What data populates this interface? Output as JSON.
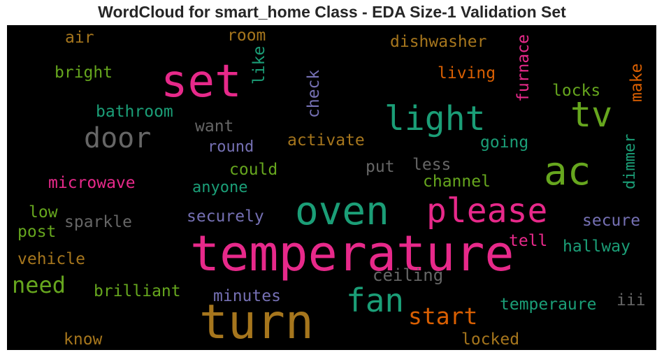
{
  "chart_data": {
    "type": "wordcloud",
    "title": "WordCloud for smart_home Class - EDA Size-1 Validation Set",
    "background": "#000000",
    "words": [
      {
        "text": "temperature",
        "color": "#e7298a"
      },
      {
        "text": "turn",
        "color": "#a6761d"
      },
      {
        "text": "oven",
        "color": "#1b9e77"
      },
      {
        "text": "please",
        "color": "#e7298a"
      },
      {
        "text": "set",
        "color": "#e7298a"
      },
      {
        "text": "light",
        "color": "#1b9e77"
      },
      {
        "text": "ac",
        "color": "#66a61e"
      },
      {
        "text": "tv",
        "color": "#66a61e"
      },
      {
        "text": "fan",
        "color": "#1b9e77"
      },
      {
        "text": "door",
        "color": "#666666"
      },
      {
        "text": "start",
        "color": "#d95f02"
      },
      {
        "text": "need",
        "color": "#66a61e"
      },
      {
        "text": "ceiling",
        "color": "#666666"
      },
      {
        "text": "bathroom",
        "color": "#1b9e77"
      },
      {
        "text": "furnace",
        "color": "#e7298a"
      },
      {
        "text": "check",
        "color": "#7570b3"
      },
      {
        "text": "dishwasher",
        "color": "#a6761d"
      },
      {
        "text": "living",
        "color": "#d95f02"
      },
      {
        "text": "activate",
        "color": "#a6761d"
      },
      {
        "text": "going",
        "color": "#1b9e77"
      },
      {
        "text": "make",
        "color": "#d95f02"
      },
      {
        "text": "locks",
        "color": "#66a61e"
      },
      {
        "text": "dimmer",
        "color": "#1b9e77"
      },
      {
        "text": "secure",
        "color": "#7570b3"
      },
      {
        "text": "hallway",
        "color": "#1b9e77"
      },
      {
        "text": "tell",
        "color": "#e7298a"
      },
      {
        "text": "temperaure",
        "color": "#1b9e77"
      },
      {
        "text": "iii",
        "color": "#666666"
      },
      {
        "text": "locked",
        "color": "#a6761d"
      },
      {
        "text": "minutes",
        "color": "#7570b3"
      },
      {
        "text": "brilliant",
        "color": "#66a61e"
      },
      {
        "text": "know",
        "color": "#a6761d"
      },
      {
        "text": "vehicle",
        "color": "#a6761d"
      },
      {
        "text": "post",
        "color": "#66a61e"
      },
      {
        "text": "low",
        "color": "#66a61e"
      },
      {
        "text": "sparkle",
        "color": "#666666"
      },
      {
        "text": "securely",
        "color": "#7570b3"
      },
      {
        "text": "microwave",
        "color": "#e7298a"
      },
      {
        "text": "anyone",
        "color": "#1b9e77"
      },
      {
        "text": "could",
        "color": "#66a61e"
      },
      {
        "text": "put",
        "color": "#666666"
      },
      {
        "text": "less",
        "color": "#666666"
      },
      {
        "text": "channel",
        "color": "#66a61e"
      },
      {
        "text": "round",
        "color": "#7570b3"
      },
      {
        "text": "want",
        "color": "#666666"
      },
      {
        "text": "bright",
        "color": "#66a61e"
      },
      {
        "text": "air",
        "color": "#a6761d"
      },
      {
        "text": "room",
        "color": "#a6761d"
      },
      {
        "text": "like",
        "color": "#1b9e77"
      }
    ]
  }
}
